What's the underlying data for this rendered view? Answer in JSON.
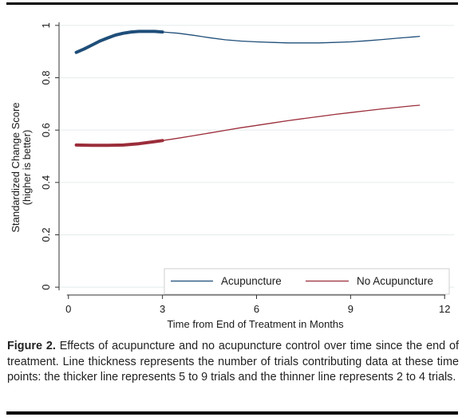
{
  "figure": {
    "label": "Figure 2.",
    "caption": "Effects of acupuncture and no acupuncture control over time since the end of treatment. Line thickness represents the number of trials contributing data at these time points: the thicker line represents 5 to 9 trials and the thinner line represents 2 to 4 trials."
  },
  "chart_data": {
    "type": "line",
    "xlabel": "Time from End of Treatment in Months",
    "ylabel_line1": "Standardized Change Score",
    "ylabel_line2": "(higher is better)",
    "xlim": [
      -0.3,
      12.3
    ],
    "ylim": [
      -0.03,
      1.03
    ],
    "xticks": [
      0,
      3,
      6,
      9,
      12
    ],
    "xtick_labels": [
      "0",
      "3",
      "6",
      "9",
      "12"
    ],
    "yticks": [
      0,
      0.2,
      0.4,
      0.6,
      0.8,
      1
    ],
    "ytick_labels": [
      "0",
      "0.2",
      "0.4",
      "0.6",
      "0.8",
      "1"
    ],
    "grid": true,
    "legend_position": "bottom-right",
    "series": [
      {
        "name": "Acupuncture",
        "color": "#1f4e79",
        "x": [
          0.25,
          0.5,
          0.75,
          1.0,
          1.25,
          1.5,
          1.75,
          2.0,
          2.25,
          2.5,
          2.75,
          3.0,
          3.5,
          4.0,
          4.5,
          5.0,
          5.5,
          6.0,
          6.5,
          7.0,
          7.5,
          8.0,
          8.5,
          9.0,
          9.5,
          10.0,
          10.5,
          11.0,
          11.2
        ],
        "y": [
          0.897,
          0.91,
          0.925,
          0.94,
          0.952,
          0.963,
          0.97,
          0.975,
          0.977,
          0.977,
          0.977,
          0.975,
          0.97,
          0.962,
          0.953,
          0.945,
          0.94,
          0.937,
          0.935,
          0.933,
          0.933,
          0.933,
          0.935,
          0.937,
          0.941,
          0.946,
          0.951,
          0.956,
          0.958
        ],
        "thick_until_x": 3.1
      },
      {
        "name": "No Acupuncture",
        "color": "#9b2d3a",
        "x": [
          0.25,
          0.75,
          1.25,
          1.75,
          2.25,
          2.75,
          3.0,
          3.5,
          4.0,
          4.5,
          5.0,
          5.5,
          6.0,
          6.5,
          7.0,
          7.5,
          8.0,
          8.5,
          9.0,
          9.5,
          10.0,
          10.5,
          11.0,
          11.2
        ],
        "y": [
          0.543,
          0.542,
          0.542,
          0.543,
          0.548,
          0.556,
          0.56,
          0.569,
          0.579,
          0.589,
          0.599,
          0.609,
          0.618,
          0.627,
          0.636,
          0.644,
          0.652,
          0.66,
          0.667,
          0.674,
          0.681,
          0.687,
          0.693,
          0.695
        ],
        "thick_until_x": 3.1
      }
    ]
  }
}
